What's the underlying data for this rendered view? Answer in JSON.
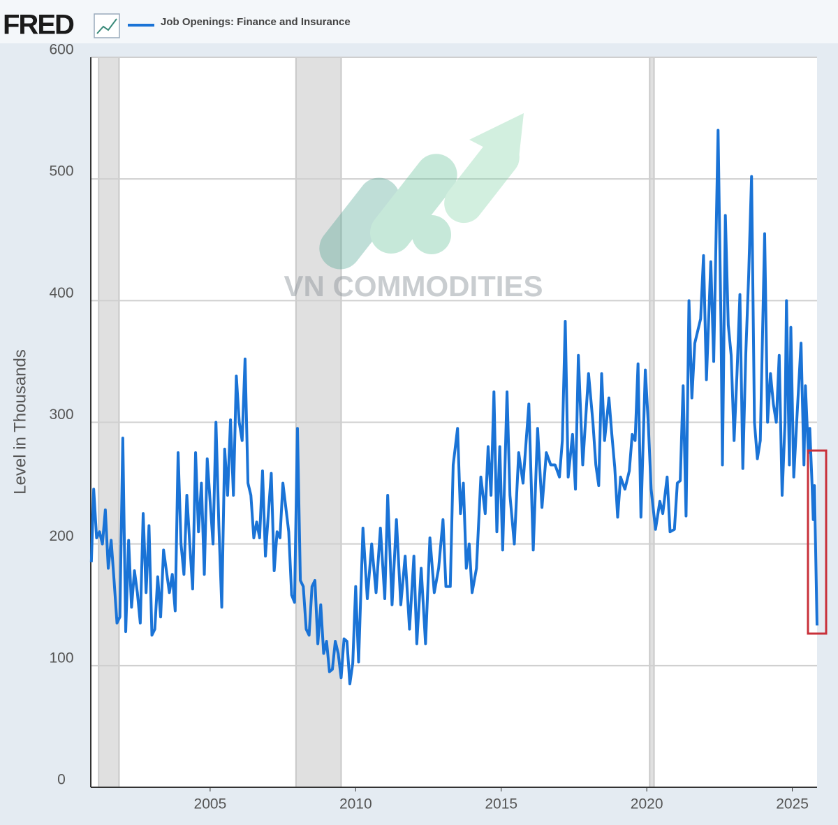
{
  "logo": "FRED",
  "watermark": "VN COMMODITIES",
  "chart_data": {
    "type": "line",
    "y_label": "Level in Thousands",
    "xlim": [
      2000.9,
      2025.85
    ],
    "ylim": [
      0,
      600
    ],
    "xticks": [
      2005,
      2010,
      2015,
      2020,
      2025
    ],
    "yticks": [
      0,
      100,
      200,
      300,
      400,
      500,
      600
    ],
    "grid": true,
    "recessions": [
      [
        2001.17,
        2001.87
      ],
      [
        2007.95,
        2009.5
      ],
      [
        2020.1,
        2020.25
      ]
    ],
    "x": [
      2000.92,
      2001.0,
      2001.1,
      2001.2,
      2001.3,
      2001.4,
      2001.5,
      2001.6,
      2001.7,
      2001.8,
      2001.9,
      2002.0,
      2002.1,
      2002.2,
      2002.3,
      2002.4,
      2002.5,
      2002.6,
      2002.7,
      2002.8,
      2002.9,
      2003.0,
      2003.1,
      2003.2,
      2003.3,
      2003.4,
      2003.6,
      2003.7,
      2003.8,
      2003.9,
      2004.0,
      2004.1,
      2004.2,
      2004.3,
      2004.4,
      2004.5,
      2004.6,
      2004.7,
      2004.8,
      2004.9,
      2005.1,
      2005.2,
      2005.3,
      2005.4,
      2005.5,
      2005.6,
      2005.7,
      2005.8,
      2005.9,
      2006.0,
      2006.1,
      2006.2,
      2006.3,
      2006.4,
      2006.5,
      2006.6,
      2006.7,
      2006.8,
      2006.9,
      2007.0,
      2007.1,
      2007.2,
      2007.3,
      2007.4,
      2007.5,
      2007.6,
      2007.7,
      2007.8,
      2007.9,
      2008.0,
      2008.1,
      2008.2,
      2008.3,
      2008.4,
      2008.5,
      2008.6,
      2008.7,
      2008.8,
      2008.9,
      2009.0,
      2009.1,
      2009.2,
      2009.3,
      2009.4,
      2009.5,
      2009.6,
      2009.7,
      2009.8,
      2009.9,
      2010.0,
      2010.1,
      2010.25,
      2010.4,
      2010.55,
      2010.7,
      2010.85,
      2011.0,
      2011.1,
      2011.25,
      2011.4,
      2011.55,
      2011.7,
      2011.85,
      2012.0,
      2012.1,
      2012.25,
      2012.4,
      2012.55,
      2012.7,
      2012.85,
      2013.0,
      2013.1,
      2013.25,
      2013.35,
      2013.5,
      2013.6,
      2013.7,
      2013.8,
      2013.9,
      2014.0,
      2014.15,
      2014.3,
      2014.45,
      2014.55,
      2014.65,
      2014.75,
      2014.85,
      2014.95,
      2015.05,
      2015.2,
      2015.3,
      2015.45,
      2015.6,
      2015.75,
      2015.95,
      2016.1,
      2016.25,
      2016.4,
      2016.55,
      2016.7,
      2016.85,
      2017.0,
      2017.1,
      2017.2,
      2017.3,
      2017.45,
      2017.55,
      2017.65,
      2017.8,
      2018.0,
      2018.15,
      2018.25,
      2018.35,
      2018.45,
      2018.55,
      2018.7,
      2018.8,
      2018.9,
      2019.0,
      2019.1,
      2019.25,
      2019.4,
      2019.5,
      2019.6,
      2019.7,
      2019.8,
      2019.95,
      2020.05,
      2020.15,
      2020.3,
      2020.45,
      2020.55,
      2020.7,
      2020.8,
      2020.95,
      2021.05,
      2021.15,
      2021.25,
      2021.35,
      2021.45,
      2021.55,
      2021.65,
      2021.75,
      2021.85,
      2021.95,
      2022.05,
      2022.2,
      2022.3,
      2022.45,
      2022.55,
      2022.6,
      2022.7,
      2022.8,
      2022.9,
      2023.0,
      2023.1,
      2023.2,
      2023.3,
      2023.4,
      2023.5,
      2023.6,
      2023.7,
      2023.8,
      2023.9,
      2024.05,
      2024.15,
      2024.25,
      2024.35,
      2024.45,
      2024.55,
      2024.65,
      2024.75,
      2024.8,
      2024.9,
      2024.95,
      2025.05,
      2025.15,
      2025.3,
      2025.4,
      2025.45,
      2025.55,
      2025.6,
      2025.68,
      2025.72,
      2025.76,
      2025.85
    ],
    "series": [
      {
        "name": "Job Openings: Finance and Insurance",
        "color": "#1a73d6",
        "values": [
          185,
          245,
          205,
          210,
          200,
          228,
          180,
          203,
          170,
          135,
          140,
          287,
          128,
          203,
          148,
          178,
          160,
          135,
          225,
          160,
          215,
          125,
          130,
          173,
          140,
          195,
          160,
          175,
          145,
          275,
          200,
          175,
          240,
          200,
          163,
          275,
          210,
          250,
          175,
          270,
          200,
          300,
          215,
          148,
          278,
          240,
          302,
          240,
          338,
          300,
          285,
          352,
          250,
          240,
          205,
          218,
          205,
          260,
          190,
          225,
          258,
          178,
          210,
          205,
          250,
          230,
          210,
          158,
          152,
          295,
          170,
          165,
          130,
          125,
          165,
          170,
          118,
          150,
          110,
          120,
          95,
          97,
          120,
          110,
          90,
          122,
          120,
          85,
          102,
          165,
          103,
          213,
          155,
          200,
          160,
          213,
          155,
          240,
          150,
          220,
          150,
          190,
          130,
          190,
          118,
          180,
          118,
          205,
          160,
          180,
          220,
          165,
          165,
          265,
          295,
          225,
          250,
          180,
          200,
          160,
          180,
          255,
          225,
          280,
          240,
          325,
          210,
          280,
          195,
          325,
          240,
          200,
          275,
          250,
          315,
          195,
          295,
          230,
          275,
          265,
          265,
          255,
          285,
          383,
          255,
          290,
          245,
          355,
          265,
          340,
          300,
          265,
          248,
          340,
          285,
          320,
          290,
          263,
          222,
          255,
          245,
          260,
          290,
          285,
          348,
          222,
          343,
          300,
          245,
          212,
          235,
          225,
          255,
          210,
          212,
          250,
          252,
          330,
          223,
          400,
          320,
          365,
          375,
          385,
          437,
          335,
          432,
          350,
          540,
          380,
          265,
          470,
          380,
          355,
          285,
          340,
          405,
          262,
          355,
          420,
          502,
          300,
          270,
          285,
          455,
          300,
          340,
          315,
          300,
          355,
          240,
          300,
          400,
          265,
          378,
          255,
          300,
          365,
          265,
          330,
          275,
          295,
          248,
          220,
          248,
          133
        ]
      }
    ]
  }
}
